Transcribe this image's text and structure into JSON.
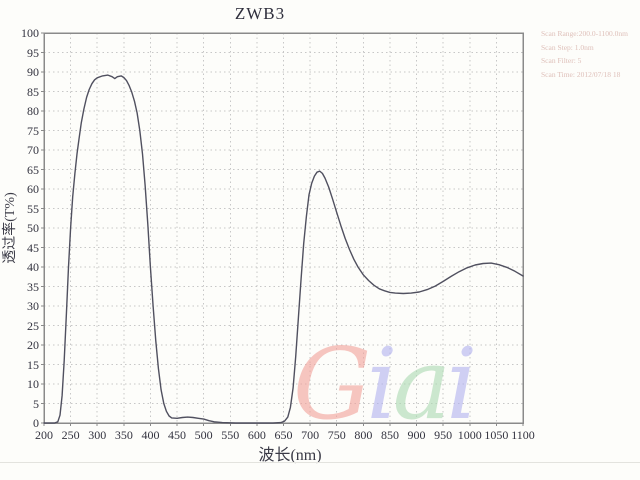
{
  "title": "ZWB3",
  "scan_info": {
    "lines": [
      "Scan Range:200.0-1100.0nm",
      "Scan Step:  1.0nm",
      "Scan Filter:  5",
      "Scan Time:  2012/07/18  18"
    ]
  },
  "watermark": {
    "text": "Giai",
    "letters": [
      {
        "char": "G",
        "color": "#f2a39c"
      },
      {
        "char": "i",
        "color": "#b3b3f0"
      },
      {
        "char": "a",
        "color": "#aedbb4"
      },
      {
        "char": "i",
        "color": "#b3b3f0"
      }
    ]
  },
  "colors": {
    "curve": "#50505f",
    "grid": "#c7c7c7",
    "border": "#8a8a8a",
    "label": "#33333f"
  },
  "chart_data": {
    "type": "line",
    "title": "ZWB3",
    "xlabel": "波长(nm)",
    "ylabel": "透过率(T%)",
    "xlim": [
      200,
      1100
    ],
    "ylim": [
      0,
      100
    ],
    "x_ticks": [
      200,
      250,
      300,
      350,
      400,
      450,
      500,
      550,
      600,
      650,
      700,
      750,
      800,
      850,
      900,
      950,
      1000,
      1050,
      1100
    ],
    "y_ticks": [
      0,
      5,
      10,
      15,
      20,
      25,
      30,
      35,
      40,
      45,
      50,
      55,
      60,
      65,
      70,
      75,
      80,
      85,
      90,
      95,
      100
    ],
    "grid": "dashed",
    "legend": "none",
    "series": [
      {
        "name": "ZWB3 transmittance",
        "points": [
          [
            200,
            0
          ],
          [
            210,
            0
          ],
          [
            220,
            0
          ],
          [
            226,
            0.3
          ],
          [
            230,
            2
          ],
          [
            234,
            7
          ],
          [
            238,
            16
          ],
          [
            242,
            28
          ],
          [
            246,
            40
          ],
          [
            250,
            50
          ],
          [
            254,
            58
          ],
          [
            258,
            64
          ],
          [
            262,
            69
          ],
          [
            266,
            73
          ],
          [
            270,
            77
          ],
          [
            275,
            80.5
          ],
          [
            280,
            83.5
          ],
          [
            285,
            85.5
          ],
          [
            290,
            87
          ],
          [
            295,
            88
          ],
          [
            300,
            88.5
          ],
          [
            310,
            89
          ],
          [
            320,
            89.2
          ],
          [
            328,
            88.8
          ],
          [
            333,
            88.3
          ],
          [
            338,
            88.8
          ],
          [
            345,
            89
          ],
          [
            350,
            88.6
          ],
          [
            355,
            87.8
          ],
          [
            360,
            86.5
          ],
          [
            365,
            84.8
          ],
          [
            370,
            82.5
          ],
          [
            375,
            79.5
          ],
          [
            380,
            75
          ],
          [
            385,
            69
          ],
          [
            390,
            61
          ],
          [
            395,
            51
          ],
          [
            400,
            40
          ],
          [
            405,
            30
          ],
          [
            410,
            21
          ],
          [
            415,
            14
          ],
          [
            420,
            8.5
          ],
          [
            425,
            5
          ],
          [
            430,
            3
          ],
          [
            435,
            1.8
          ],
          [
            440,
            1.3
          ],
          [
            450,
            1.2
          ],
          [
            460,
            1.4
          ],
          [
            470,
            1.5
          ],
          [
            480,
            1.4
          ],
          [
            490,
            1.2
          ],
          [
            500,
            1
          ],
          [
            510,
            0.6
          ],
          [
            520,
            0.3
          ],
          [
            535,
            0.1
          ],
          [
            560,
            0
          ],
          [
            600,
            0
          ],
          [
            630,
            0
          ],
          [
            645,
            0.1
          ],
          [
            652,
            0.5
          ],
          [
            658,
            1.5
          ],
          [
            663,
            4
          ],
          [
            668,
            9
          ],
          [
            673,
            17
          ],
          [
            678,
            27
          ],
          [
            683,
            37
          ],
          [
            688,
            46
          ],
          [
            693,
            53
          ],
          [
            698,
            58.5
          ],
          [
            703,
            61.5
          ],
          [
            708,
            63.3
          ],
          [
            713,
            64.3
          ],
          [
            718,
            64.6
          ],
          [
            723,
            64
          ],
          [
            728,
            62.8
          ],
          [
            735,
            60.5
          ],
          [
            742,
            57.5
          ],
          [
            750,
            54
          ],
          [
            758,
            50.5
          ],
          [
            766,
            47.3
          ],
          [
            774,
            44.5
          ],
          [
            782,
            42
          ],
          [
            790,
            40
          ],
          [
            800,
            38
          ],
          [
            810,
            36.5
          ],
          [
            820,
            35.3
          ],
          [
            830,
            34.4
          ],
          [
            840,
            33.9
          ],
          [
            850,
            33.5
          ],
          [
            860,
            33.3
          ],
          [
            875,
            33.2
          ],
          [
            890,
            33.3
          ],
          [
            905,
            33.6
          ],
          [
            920,
            34.2
          ],
          [
            935,
            35.1
          ],
          [
            950,
            36.3
          ],
          [
            965,
            37.6
          ],
          [
            980,
            38.8
          ],
          [
            995,
            39.8
          ],
          [
            1010,
            40.5
          ],
          [
            1025,
            40.9
          ],
          [
            1040,
            41
          ],
          [
            1055,
            40.6
          ],
          [
            1070,
            39.9
          ],
          [
            1085,
            38.9
          ],
          [
            1100,
            37.7
          ]
        ]
      }
    ]
  }
}
